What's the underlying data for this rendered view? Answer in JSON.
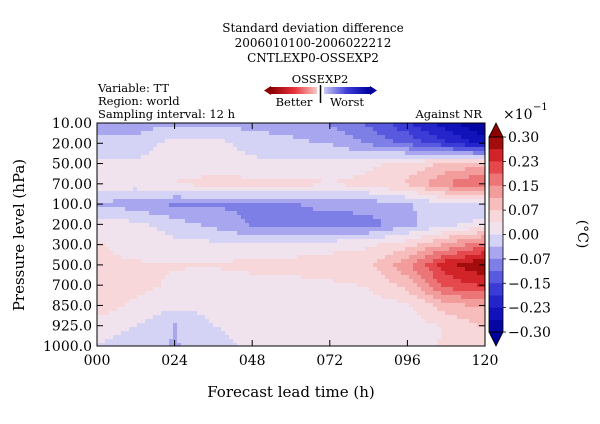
{
  "chart_data": {
    "type": "heatmap",
    "title_lines": [
      "Standard deviation difference",
      "2006010100-2006022212",
      "CNTLEXP0-OSSEXP2"
    ],
    "info_lines": [
      "Variable: TT",
      "Region: world",
      "Sampling interval: 12 h"
    ],
    "legend": {
      "title": "OSSEXP2",
      "better_label": "Better",
      "worse_label": "Worst"
    },
    "annotation": "Against NR",
    "xlabel": "Forecast lead time (h)",
    "ylabel": "Pressure level (hPa)",
    "x_tick_labels": [
      "000",
      "024",
      "048",
      "072",
      "096",
      "120"
    ],
    "y_tick_labels": [
      "10.00",
      "20.00",
      "50.00",
      "70.00",
      "100.0",
      "200.0",
      "300.0",
      "500.0",
      "700.0",
      "850.0",
      "925.0",
      "1000.0"
    ],
    "colorbar": {
      "scale_label": "×10",
      "scale_exponent": "−1",
      "unit_label": "(°C)",
      "tick_labels": [
        "0.30",
        "0.23",
        "0.15",
        "0.07",
        "0.00",
        "−0.07",
        "−0.15",
        "−0.23",
        "−0.30"
      ],
      "range": [
        -0.3,
        0.3
      ]
    },
    "x_values": [
      0,
      12,
      24,
      36,
      48,
      60,
      72,
      84,
      96,
      108,
      120
    ],
    "z_values": [
      [
        -0.05,
        -0.05,
        -0.05,
        -0.05,
        -0.05,
        -0.05,
        -0.08,
        -0.12,
        -0.18,
        -0.25,
        -0.3
      ],
      [
        -0.03,
        -0.03,
        0.02,
        0.02,
        -0.02,
        -0.03,
        -0.04,
        -0.08,
        -0.12,
        -0.18,
        -0.25
      ],
      [
        0.01,
        0.01,
        0.02,
        0.02,
        0.01,
        0.01,
        0.01,
        0.03,
        0.05,
        0.08,
        0.1
      ],
      [
        0.02,
        0.02,
        0.04,
        0.05,
        0.05,
        0.05,
        0.04,
        0.05,
        0.08,
        0.15,
        0.2
      ],
      [
        -0.04,
        -0.06,
        -0.08,
        -0.08,
        -0.08,
        -0.08,
        -0.06,
        -0.06,
        -0.04,
        -0.01,
        -0.02
      ],
      [
        0.02,
        0.01,
        -0.02,
        -0.05,
        -0.08,
        -0.09,
        -0.1,
        -0.09,
        -0.05,
        -0.01,
        0.01
      ],
      [
        0.04,
        0.03,
        0.01,
        0.01,
        0.0,
        0.0,
        0.02,
        0.03,
        0.06,
        0.12,
        0.18
      ],
      [
        0.04,
        0.04,
        0.04,
        0.04,
        0.05,
        0.06,
        0.06,
        0.07,
        0.14,
        0.25,
        0.3
      ],
      [
        0.05,
        0.05,
        0.03,
        0.02,
        0.02,
        0.02,
        0.03,
        0.04,
        0.09,
        0.2,
        0.23
      ],
      [
        0.06,
        0.03,
        0.01,
        0.01,
        0.02,
        0.03,
        0.02,
        0.02,
        0.03,
        0.1,
        0.12
      ],
      [
        0.02,
        0.0,
        -0.04,
        0.0,
        0.02,
        0.02,
        0.02,
        0.02,
        0.02,
        0.04,
        0.08
      ],
      [
        0.0,
        -0.02,
        -0.04,
        -0.02,
        0.01,
        0.0,
        0.01,
        0.02,
        0.03,
        0.04,
        0.05
      ]
    ]
  }
}
